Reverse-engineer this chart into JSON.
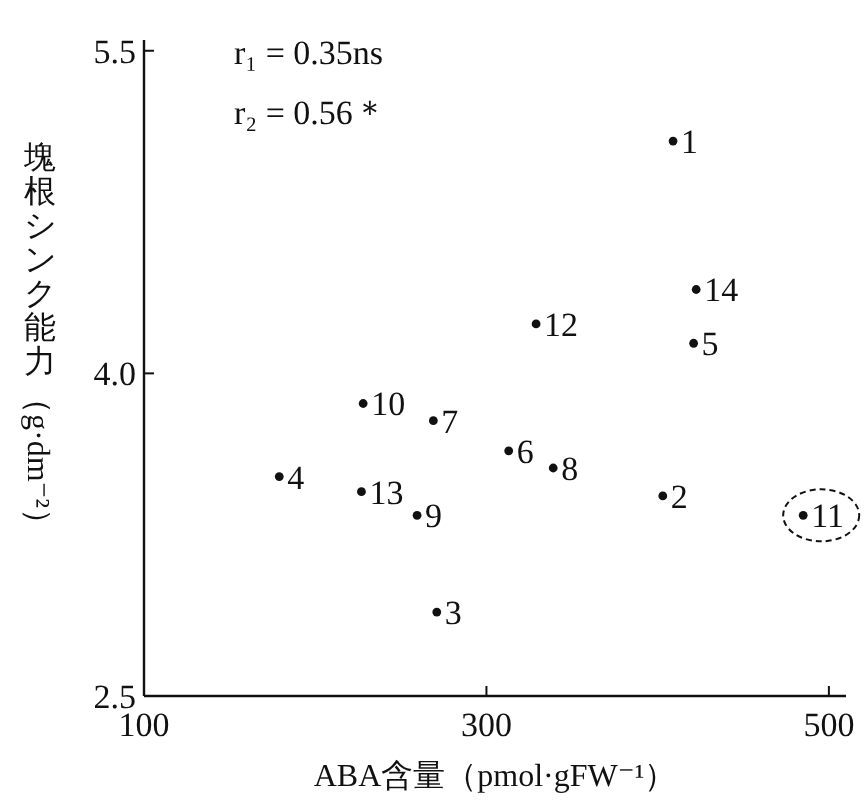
{
  "chart_data": {
    "type": "scatter",
    "xlabel": "ABA含量（pmol·gFW⁻¹）",
    "ylabel": "塊根シンク能力（g·dm⁻²）",
    "x": [
      409,
      403,
      271,
      179,
      421,
      313,
      269,
      339,
      259.5,
      228,
      485,
      329,
      227,
      422.5
    ],
    "values": [
      5.08,
      3.43,
      2.89,
      3.52,
      4.14,
      3.64,
      3.78,
      3.56,
      3.34,
      3.86,
      3.34,
      4.23,
      3.45,
      4.39
    ],
    "color": "#111111",
    "marker": "circle",
    "xlim": [
      100,
      510
    ],
    "ylim": [
      2.5,
      5.55
    ],
    "xticks": [
      100,
      300,
      500
    ],
    "yticks": [
      {
        "value": 2.5,
        "label": "2.5"
      },
      {
        "value": 4,
        "label": "4.0"
      },
      {
        "value": 5.5,
        "label": "5.5"
      }
    ],
    "annotations": [
      "r₁ = 0.35ns",
      "r₂ = 0.56＊",
      {
        "text": "1",
        "x": 409,
        "y": 5.08
      },
      {
        "text": "2",
        "x": 403,
        "y": 3.43
      },
      {
        "text": "3",
        "x": 271,
        "y": 2.89
      },
      {
        "text": "4",
        "x": 179,
        "y": 3.52
      },
      {
        "text": "5",
        "x": 421,
        "y": 4.14
      },
      {
        "text": "6",
        "x": 313,
        "y": 3.64
      },
      {
        "text": "7",
        "x": 269,
        "y": 3.78
      },
      {
        "text": "8",
        "x": 339,
        "y": 3.56
      },
      {
        "text": "9",
        "x": 259.5,
        "y": 3.34
      },
      {
        "text": "10",
        "x": 228,
        "y": 3.86
      },
      {
        "text": "11",
        "x": 485,
        "y": 3.34
      },
      {
        "text": "12",
        "x": 329,
        "y": 4.23
      },
      {
        "text": "13",
        "x": 227,
        "y": 3.45
      },
      {
        "text": "14",
        "x": 422.5,
        "y": 4.39
      }
    ]
  }
}
